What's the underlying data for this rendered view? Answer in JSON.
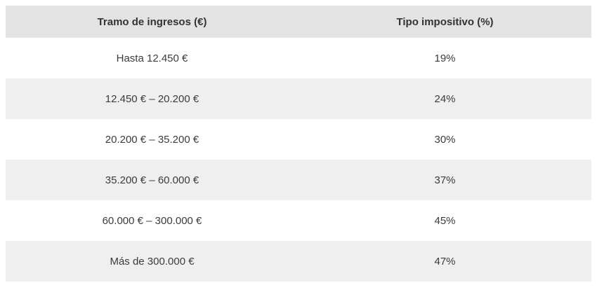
{
  "chart_data": {
    "type": "table",
    "columns": [
      "Tramo de ingresos (€)",
      "Tipo impositivo (%)"
    ],
    "rows": [
      [
        "Hasta 12.450 €",
        "19%"
      ],
      [
        "12.450 € – 20.200 €",
        "24%"
      ],
      [
        "20.200 € – 35.200 €",
        "30%"
      ],
      [
        "35.200 € – 60.000 €",
        "37%"
      ],
      [
        "60.000 € – 300.000 €",
        "45%"
      ],
      [
        "Más de 300.000 €",
        "47%"
      ]
    ],
    "rates_percent": [
      19,
      24,
      30,
      37,
      45,
      47
    ],
    "bracket_bounds_eur": [
      {
        "from": 0,
        "to": 12450
      },
      {
        "from": 12450,
        "to": 20200
      },
      {
        "from": 20200,
        "to": 35200
      },
      {
        "from": 35200,
        "to": 60000
      },
      {
        "from": 60000,
        "to": 300000
      },
      {
        "from": 300000,
        "to": null
      }
    ],
    "layout": {
      "striped": true,
      "header_bg": "#e3e3e3",
      "stripe_bg": "#efefef",
      "row_bg": "#ffffff",
      "text_color": "#3b3b3b",
      "text_align": "center"
    }
  }
}
